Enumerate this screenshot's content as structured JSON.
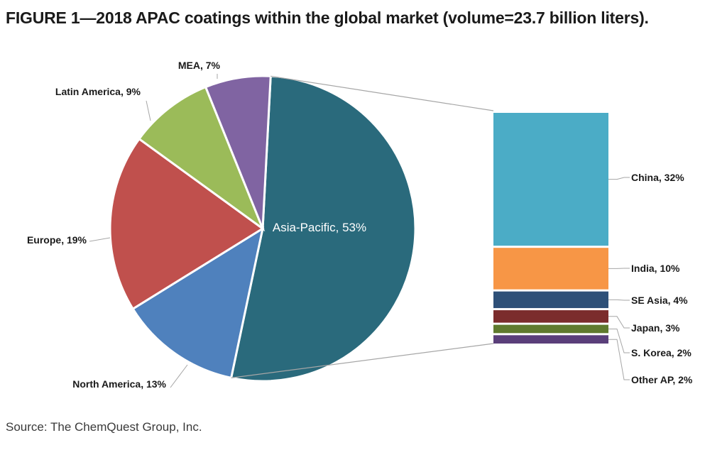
{
  "title": "FIGURE 1—2018 APAC coatings within the global market (volume=23.7 billion liters).",
  "source": "Source: The ChemQuest Group, Inc.",
  "chart_data": [
    {
      "type": "pie",
      "slices": [
        {
          "name": "Asia-Pacific",
          "value": 53,
          "label": "Asia-Pacific, 53%",
          "color": "#2a6a7c"
        },
        {
          "name": "North America",
          "value": 13,
          "label": "North America, 13%",
          "color": "#4f81bd"
        },
        {
          "name": "Europe",
          "value": 19,
          "label": "Europe, 19%",
          "color": "#c0504d"
        },
        {
          "name": "Latin America",
          "value": 9,
          "label": "Latin America, 9%",
          "color": "#9bbb59"
        },
        {
          "name": "MEA",
          "value": 7,
          "label": "MEA, 7%",
          "color": "#8064a2"
        }
      ]
    },
    {
      "type": "bar",
      "stacked": true,
      "categories": [
        "China",
        "India",
        "SE Asia",
        "Japan",
        "S. Korea",
        "Other AP"
      ],
      "values": [
        32,
        10,
        4,
        3,
        2,
        2
      ],
      "labels": [
        "China, 32%",
        "India, 10%",
        "SE Asia, 4%",
        "Japan, 3%",
        "S. Korea, 2%",
        "Other AP, 2%"
      ],
      "colors": [
        "#4bacc6",
        "#f79646",
        "#2e5078",
        "#7b2c2c",
        "#5f7a2e",
        "#5a3f7a"
      ]
    }
  ]
}
